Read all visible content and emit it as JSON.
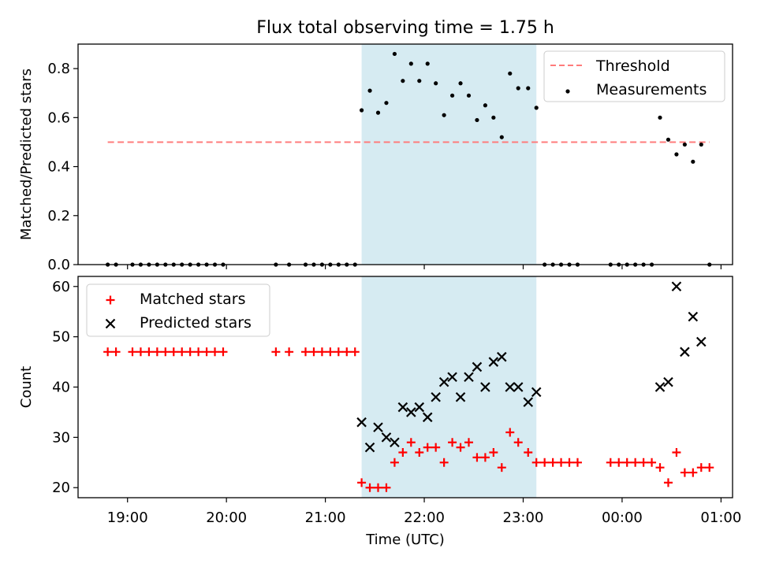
{
  "figure": {
    "title": "Flux total observing time = 1.75 h",
    "xlabel": "Time (UTC)"
  },
  "chart_data": [
    {
      "type": "scatter",
      "panel": "top",
      "ylabel": "Matched/Predicted stars",
      "xlim": [
        "18:30",
        "01:07"
      ],
      "ylim": [
        0,
        0.9
      ],
      "x_ticks": [
        "19:00",
        "20:00",
        "21:00",
        "22:00",
        "23:00",
        "00:00",
        "01:00"
      ],
      "y_ticks": [
        "0.0",
        "0.2",
        "0.4",
        "0.6",
        "0.8"
      ],
      "grid": false,
      "legend_position": "top-right",
      "shaded_interval": {
        "x": [
          "21:22",
          "23:08"
        ],
        "color": "#add8e6"
      },
      "series": [
        {
          "name": "Threshold",
          "style": "dashed-line",
          "color": "#ff7b7b",
          "points": [
            {
              "x": "18:48",
              "y": 0.5
            },
            {
              "x": "00:53",
              "y": 0.5
            }
          ]
        },
        {
          "name": "Measurements",
          "style": "dot",
          "color": "#000000",
          "points": [
            {
              "x": "18:48",
              "y": 0
            },
            {
              "x": "18:53",
              "y": 0
            },
            {
              "x": "19:03",
              "y": 0
            },
            {
              "x": "19:08",
              "y": 0
            },
            {
              "x": "19:13",
              "y": 0
            },
            {
              "x": "19:18",
              "y": 0
            },
            {
              "x": "19:23",
              "y": 0
            },
            {
              "x": "19:28",
              "y": 0
            },
            {
              "x": "19:33",
              "y": 0
            },
            {
              "x": "19:38",
              "y": 0
            },
            {
              "x": "19:43",
              "y": 0
            },
            {
              "x": "19:48",
              "y": 0
            },
            {
              "x": "19:53",
              "y": 0
            },
            {
              "x": "19:58",
              "y": 0
            },
            {
              "x": "20:30",
              "y": 0
            },
            {
              "x": "20:38",
              "y": 0
            },
            {
              "x": "20:48",
              "y": 0
            },
            {
              "x": "20:53",
              "y": 0
            },
            {
              "x": "20:58",
              "y": 0
            },
            {
              "x": "21:03",
              "y": 0
            },
            {
              "x": "21:08",
              "y": 0
            },
            {
              "x": "21:13",
              "y": 0
            },
            {
              "x": "21:18",
              "y": 0
            },
            {
              "x": "21:22",
              "y": 0.63
            },
            {
              "x": "21:27",
              "y": 0.71
            },
            {
              "x": "21:32",
              "y": 0.62
            },
            {
              "x": "21:37",
              "y": 0.66
            },
            {
              "x": "21:42",
              "y": 0.86
            },
            {
              "x": "21:47",
              "y": 0.75
            },
            {
              "x": "21:52",
              "y": 0.82
            },
            {
              "x": "21:57",
              "y": 0.75
            },
            {
              "x": "22:02",
              "y": 0.82
            },
            {
              "x": "22:07",
              "y": 0.74
            },
            {
              "x": "22:12",
              "y": 0.61
            },
            {
              "x": "22:17",
              "y": 0.69
            },
            {
              "x": "22:22",
              "y": 0.74
            },
            {
              "x": "22:27",
              "y": 0.69
            },
            {
              "x": "22:32",
              "y": 0.59
            },
            {
              "x": "22:37",
              "y": 0.65
            },
            {
              "x": "22:42",
              "y": 0.6
            },
            {
              "x": "22:47",
              "y": 0.52
            },
            {
              "x": "22:52",
              "y": 0.78
            },
            {
              "x": "22:57",
              "y": 0.72
            },
            {
              "x": "23:03",
              "y": 0.72
            },
            {
              "x": "23:08",
              "y": 0.64
            },
            {
              "x": "23:13",
              "y": 0
            },
            {
              "x": "23:18",
              "y": 0
            },
            {
              "x": "23:23",
              "y": 0
            },
            {
              "x": "23:28",
              "y": 0
            },
            {
              "x": "23:33",
              "y": 0
            },
            {
              "x": "23:53",
              "y": 0
            },
            {
              "x": "23:58",
              "y": 0
            },
            {
              "x": "00:03",
              "y": 0
            },
            {
              "x": "00:08",
              "y": 0
            },
            {
              "x": "00:13",
              "y": 0
            },
            {
              "x": "00:18",
              "y": 0
            },
            {
              "x": "00:23",
              "y": 0.6
            },
            {
              "x": "00:28",
              "y": 0.51
            },
            {
              "x": "00:33",
              "y": 0.45
            },
            {
              "x": "00:38",
              "y": 0.49
            },
            {
              "x": "00:43",
              "y": 0.42
            },
            {
              "x": "00:48",
              "y": 0.49
            },
            {
              "x": "00:53",
              "y": 0
            }
          ]
        }
      ]
    },
    {
      "type": "scatter",
      "panel": "bottom",
      "ylabel": "Count",
      "xlim": [
        "18:30",
        "01:07"
      ],
      "ylim": [
        18,
        62
      ],
      "x_ticks": [
        "19:00",
        "20:00",
        "21:00",
        "22:00",
        "23:00",
        "00:00",
        "01:00"
      ],
      "y_ticks": [
        "20",
        "30",
        "40",
        "50",
        "60"
      ],
      "grid": false,
      "legend_position": "top-left",
      "shaded_interval": {
        "x": [
          "21:22",
          "23:08"
        ],
        "color": "#add8e6"
      },
      "series": [
        {
          "name": "Matched stars",
          "style": "plus",
          "color": "#ff0000",
          "points": [
            {
              "x": "18:48",
              "y": 47
            },
            {
              "x": "18:53",
              "y": 47
            },
            {
              "x": "19:03",
              "y": 47
            },
            {
              "x": "19:08",
              "y": 47
            },
            {
              "x": "19:13",
              "y": 47
            },
            {
              "x": "19:18",
              "y": 47
            },
            {
              "x": "19:23",
              "y": 47
            },
            {
              "x": "19:28",
              "y": 47
            },
            {
              "x": "19:33",
              "y": 47
            },
            {
              "x": "19:38",
              "y": 47
            },
            {
              "x": "19:43",
              "y": 47
            },
            {
              "x": "19:48",
              "y": 47
            },
            {
              "x": "19:53",
              "y": 47
            },
            {
              "x": "19:58",
              "y": 47
            },
            {
              "x": "20:30",
              "y": 47
            },
            {
              "x": "20:38",
              "y": 47
            },
            {
              "x": "20:48",
              "y": 47
            },
            {
              "x": "20:53",
              "y": 47
            },
            {
              "x": "20:58",
              "y": 47
            },
            {
              "x": "21:03",
              "y": 47
            },
            {
              "x": "21:08",
              "y": 47
            },
            {
              "x": "21:13",
              "y": 47
            },
            {
              "x": "21:18",
              "y": 47
            },
            {
              "x": "21:22",
              "y": 21
            },
            {
              "x": "21:27",
              "y": 20
            },
            {
              "x": "21:32",
              "y": 20
            },
            {
              "x": "21:37",
              "y": 20
            },
            {
              "x": "21:42",
              "y": 25
            },
            {
              "x": "21:47",
              "y": 27
            },
            {
              "x": "21:52",
              "y": 29
            },
            {
              "x": "21:57",
              "y": 27
            },
            {
              "x": "22:02",
              "y": 28
            },
            {
              "x": "22:07",
              "y": 28
            },
            {
              "x": "22:12",
              "y": 25
            },
            {
              "x": "22:17",
              "y": 29
            },
            {
              "x": "22:22",
              "y": 28
            },
            {
              "x": "22:27",
              "y": 29
            },
            {
              "x": "22:32",
              "y": 26
            },
            {
              "x": "22:37",
              "y": 26
            },
            {
              "x": "22:42",
              "y": 27
            },
            {
              "x": "22:47",
              "y": 24
            },
            {
              "x": "22:52",
              "y": 31
            },
            {
              "x": "22:57",
              "y": 29
            },
            {
              "x": "23:03",
              "y": 27
            },
            {
              "x": "23:08",
              "y": 25
            },
            {
              "x": "23:13",
              "y": 25
            },
            {
              "x": "23:18",
              "y": 25
            },
            {
              "x": "23:23",
              "y": 25
            },
            {
              "x": "23:28",
              "y": 25
            },
            {
              "x": "23:33",
              "y": 25
            },
            {
              "x": "23:53",
              "y": 25
            },
            {
              "x": "23:58",
              "y": 25
            },
            {
              "x": "00:03",
              "y": 25
            },
            {
              "x": "00:08",
              "y": 25
            },
            {
              "x": "00:13",
              "y": 25
            },
            {
              "x": "00:18",
              "y": 25
            },
            {
              "x": "00:23",
              "y": 24
            },
            {
              "x": "00:28",
              "y": 21
            },
            {
              "x": "00:33",
              "y": 27
            },
            {
              "x": "00:38",
              "y": 23
            },
            {
              "x": "00:43",
              "y": 23
            },
            {
              "x": "00:48",
              "y": 24
            },
            {
              "x": "00:53",
              "y": 24
            }
          ]
        },
        {
          "name": "Predicted stars",
          "style": "x",
          "color": "#000000",
          "points": [
            {
              "x": "21:22",
              "y": 33
            },
            {
              "x": "21:27",
              "y": 28
            },
            {
              "x": "21:32",
              "y": 32
            },
            {
              "x": "21:37",
              "y": 30
            },
            {
              "x": "21:42",
              "y": 29
            },
            {
              "x": "21:47",
              "y": 36
            },
            {
              "x": "21:52",
              "y": 35
            },
            {
              "x": "21:57",
              "y": 36
            },
            {
              "x": "22:02",
              "y": 34
            },
            {
              "x": "22:07",
              "y": 38
            },
            {
              "x": "22:12",
              "y": 41
            },
            {
              "x": "22:17",
              "y": 42
            },
            {
              "x": "22:22",
              "y": 38
            },
            {
              "x": "22:27",
              "y": 42
            },
            {
              "x": "22:32",
              "y": 44
            },
            {
              "x": "22:37",
              "y": 40
            },
            {
              "x": "22:42",
              "y": 45
            },
            {
              "x": "22:47",
              "y": 46
            },
            {
              "x": "22:52",
              "y": 40
            },
            {
              "x": "22:57",
              "y": 40
            },
            {
              "x": "23:03",
              "y": 37
            },
            {
              "x": "23:08",
              "y": 39
            },
            {
              "x": "00:23",
              "y": 40
            },
            {
              "x": "00:28",
              "y": 41
            },
            {
              "x": "00:33",
              "y": 60
            },
            {
              "x": "00:38",
              "y": 47
            },
            {
              "x": "00:43",
              "y": 54
            },
            {
              "x": "00:48",
              "y": 49
            }
          ]
        }
      ]
    }
  ]
}
